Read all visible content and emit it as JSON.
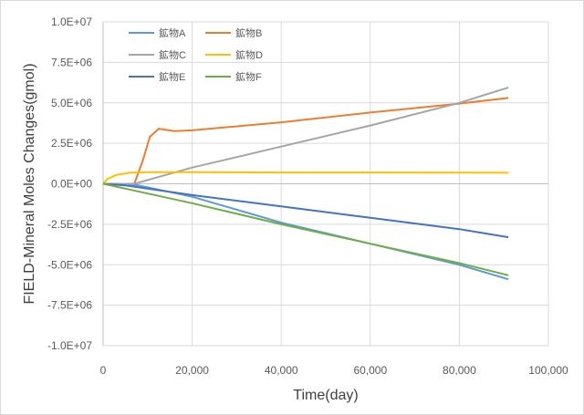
{
  "chart_data": {
    "type": "line",
    "title": "",
    "xlabel": "Time(day)",
    "ylabel": "FIELD-Mineral Moles Changes(gmol)",
    "xlim": [
      0,
      100000
    ],
    "ylim": [
      -10000000,
      10000000
    ],
    "x_ticks": [
      0,
      20000,
      40000,
      60000,
      80000,
      100000
    ],
    "x_tick_labels": [
      "0",
      "20,000",
      "40,000",
      "60,000",
      "80,000",
      "100,000"
    ],
    "y_ticks": [
      10000000,
      7500000,
      5000000,
      2500000,
      0,
      -2500000,
      -5000000,
      -7500000,
      -10000000
    ],
    "y_tick_labels": [
      "1.0E+07",
      "7.5E+06",
      "5.0E+06",
      "2.5E+06",
      "0.0E+00",
      "-2.5E+06",
      "-5.0E+06",
      "-7.5E+06",
      "-1.0E+07"
    ],
    "grid": true,
    "legend_position": "top-left",
    "series": [
      {
        "name": "鉱物A",
        "color": "#5B9BD5",
        "points": [
          [
            0,
            0
          ],
          [
            5000,
            0
          ],
          [
            8000,
            -100000
          ],
          [
            20000,
            -800000
          ],
          [
            40000,
            -2400000
          ],
          [
            60000,
            -3700000
          ],
          [
            80000,
            -5000000
          ],
          [
            91000,
            -5900000
          ]
        ]
      },
      {
        "name": "鉱物B",
        "color": "#ED7D31",
        "points": [
          [
            0,
            0
          ],
          [
            7000,
            0
          ],
          [
            9000,
            1500000
          ],
          [
            10500,
            2900000
          ],
          [
            12500,
            3400000
          ],
          [
            16000,
            3250000
          ],
          [
            20000,
            3300000
          ],
          [
            40000,
            3800000
          ],
          [
            60000,
            4400000
          ],
          [
            80000,
            4950000
          ],
          [
            91000,
            5300000
          ]
        ]
      },
      {
        "name": "鉱物C",
        "color": "#A5A5A5",
        "points": [
          [
            0,
            0
          ],
          [
            7000,
            0
          ],
          [
            20000,
            1000000
          ],
          [
            40000,
            2300000
          ],
          [
            60000,
            3600000
          ],
          [
            80000,
            5000000
          ],
          [
            91000,
            5950000
          ]
        ]
      },
      {
        "name": "鉱物D",
        "color": "#FFC000",
        "points": [
          [
            0,
            0
          ],
          [
            1000,
            300000
          ],
          [
            3000,
            550000
          ],
          [
            6000,
            680000
          ],
          [
            10000,
            720000
          ],
          [
            20000,
            720000
          ],
          [
            40000,
            700000
          ],
          [
            60000,
            700000
          ],
          [
            80000,
            690000
          ],
          [
            91000,
            680000
          ]
        ]
      },
      {
        "name": "鉱物E",
        "color": "#4472C4",
        "points": [
          [
            0,
            0
          ],
          [
            5000,
            -100000
          ],
          [
            20000,
            -700000
          ],
          [
            40000,
            -1400000
          ],
          [
            60000,
            -2100000
          ],
          [
            80000,
            -2800000
          ],
          [
            91000,
            -3300000
          ]
        ]
      },
      {
        "name": "鉱物F",
        "color": "#70AD47",
        "points": [
          [
            0,
            0
          ],
          [
            5000,
            -300000
          ],
          [
            20000,
            -1200000
          ],
          [
            40000,
            -2500000
          ],
          [
            60000,
            -3700000
          ],
          [
            80000,
            -4900000
          ],
          [
            91000,
            -5650000
          ]
        ]
      }
    ]
  }
}
